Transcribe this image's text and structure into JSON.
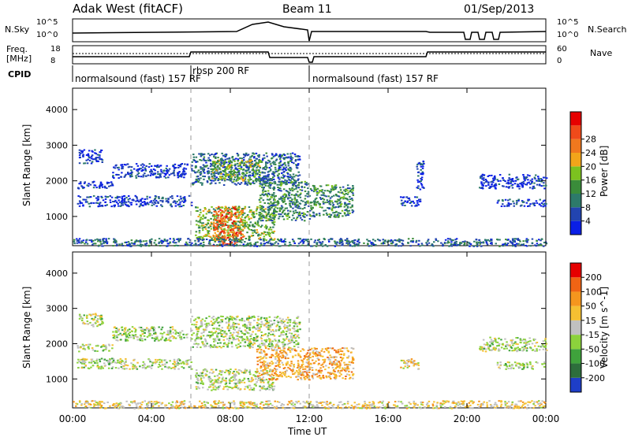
{
  "header": {
    "station": "Adak West (fitACF)",
    "beam": "Beam 11",
    "date": "01/Sep/2013"
  },
  "top_panels": {
    "nsky_label": "N.Sky",
    "nsky_ticks": [
      "10^5",
      "10^0"
    ],
    "nsearch_label": "N.Search",
    "nsearch_ticks": [
      "10^5",
      "10^0"
    ],
    "freq_label_line1": "Freq.",
    "freq_label_line2": "[MHz]",
    "freq_ticks": [
      "18",
      "8"
    ],
    "nave_label": "Nave",
    "nave_ticks": [
      "60",
      "0"
    ],
    "cpid_label": "CPID",
    "cpid_segments": [
      {
        "label": "normalsound (fast) 157 RF",
        "start_hour": 0.0
      },
      {
        "label": "rbsp 200 RF",
        "start_hour": 6.0
      },
      {
        "label": "normalsound (fast) 157 RF",
        "start_hour": 12.0
      }
    ]
  },
  "x_axis": {
    "label": "Time UT",
    "ticks": [
      "00:00",
      "04:00",
      "08:00",
      "12:00",
      "16:00",
      "20:00",
      "00:00"
    ],
    "range_hours": [
      0,
      24
    ]
  },
  "chart_data": [
    {
      "type": "heatmap",
      "quantity": "Power",
      "ylabel": "Slant Range [km]",
      "yticks": [
        1000,
        2000,
        3000,
        4000
      ],
      "ylim": [
        180,
        4600
      ],
      "xlim_hours": [
        0,
        24
      ],
      "colorbar_label": "Power [dB]",
      "colorbar_ticks": [
        "4",
        "8",
        "12",
        "16",
        "20",
        "24",
        "28"
      ],
      "colorbar_colors": [
        "#0a1fe6",
        "#2244b0",
        "#2d7a6a",
        "#3a8c3a",
        "#7cc21f",
        "#f2a51a",
        "#f0781e",
        "#f04a1a",
        "#e60000"
      ],
      "regions": [
        {
          "t0": 2.0,
          "t1": 5.8,
          "r0": 2100,
          "r1": 2500,
          "level": 1
        },
        {
          "t0": 0.2,
          "t1": 2.0,
          "r0": 1800,
          "r1": 2000,
          "level": 1
        },
        {
          "t0": 0.3,
          "t1": 1.5,
          "r0": 2500,
          "r1": 2900,
          "level": 1
        },
        {
          "t0": 6.0,
          "t1": 11.5,
          "r0": 1900,
          "r1": 2800,
          "level": 2
        },
        {
          "t0": 7.0,
          "t1": 9.5,
          "r0": 2000,
          "r1": 2600,
          "level": 4
        },
        {
          "t0": 0.2,
          "t1": 6.0,
          "r0": 1300,
          "r1": 1600,
          "level": 1
        },
        {
          "t0": 6.2,
          "t1": 10.2,
          "r0": 350,
          "r1": 1300,
          "level": 4
        },
        {
          "t0": 7.1,
          "t1": 8.6,
          "r0": 200,
          "r1": 1300,
          "level": 7
        },
        {
          "t0": 9.4,
          "t1": 12.0,
          "r0": 900,
          "r1": 2000,
          "level": 3
        },
        {
          "t0": 12.0,
          "t1": 14.2,
          "r0": 1000,
          "r1": 1900,
          "level": 3
        },
        {
          "t0": 16.6,
          "t1": 17.6,
          "r0": 1300,
          "r1": 1600,
          "level": 1
        },
        {
          "t0": 17.4,
          "t1": 17.8,
          "r0": 1700,
          "r1": 2600,
          "level": 1
        },
        {
          "t0": 20.6,
          "t1": 24.0,
          "r0": 1800,
          "r1": 2200,
          "level": 1
        },
        {
          "t0": 21.5,
          "t1": 24.0,
          "r0": 1300,
          "r1": 1500,
          "level": 1
        },
        {
          "t0": 0.0,
          "t1": 24.0,
          "r0": 180,
          "r1": 400,
          "level": 2
        }
      ]
    },
    {
      "type": "heatmap",
      "quantity": "Velocity",
      "ylabel": "Slant Range [km]",
      "yticks": [
        1000,
        2000,
        3000,
        4000
      ],
      "ylim": [
        180,
        4600
      ],
      "xlim_hours": [
        0,
        24
      ],
      "colorbar_label": "Velocity [m s^-1]",
      "colorbar_ticks": [
        "200",
        "100",
        "50",
        "15",
        "-15",
        "-50",
        "-100",
        "-200"
      ],
      "colorbar_colors": [
        "#1e3ec8",
        "#2d6e3c",
        "#3fa23c",
        "#8cd23c",
        "#c0c0c0",
        "#f5c032",
        "#f5961e",
        "#f06414",
        "#e60000"
      ],
      "regions": [
        {
          "t0": 2.0,
          "t1": 5.8,
          "r0": 2100,
          "r1": 2500,
          "level": 4
        },
        {
          "t0": 0.2,
          "t1": 2.0,
          "r0": 1800,
          "r1": 2000,
          "level": 4
        },
        {
          "t0": 0.3,
          "t1": 1.5,
          "r0": 2500,
          "r1": 2900,
          "level": 4
        },
        {
          "t0": 6.0,
          "t1": 11.5,
          "r0": 1900,
          "r1": 2800,
          "level": 4
        },
        {
          "t0": 0.2,
          "t1": 6.0,
          "r0": 1300,
          "r1": 1600,
          "level": 4
        },
        {
          "t0": 6.2,
          "t1": 10.2,
          "r0": 700,
          "r1": 1300,
          "level": 4
        },
        {
          "t0": 9.3,
          "t1": 12.0,
          "r0": 1000,
          "r1": 1900,
          "level": 6
        },
        {
          "t0": 12.0,
          "t1": 14.2,
          "r0": 1000,
          "r1": 1900,
          "level": 6
        },
        {
          "t0": 16.6,
          "t1": 17.6,
          "r0": 1300,
          "r1": 1600,
          "level": 5
        },
        {
          "t0": 20.6,
          "t1": 24.0,
          "r0": 1800,
          "r1": 2200,
          "level": 4
        },
        {
          "t0": 21.5,
          "t1": 24.0,
          "r0": 1300,
          "r1": 1500,
          "level": 4
        },
        {
          "t0": 0.0,
          "t1": 24.0,
          "r0": 180,
          "r1": 400,
          "level": 5
        }
      ]
    }
  ]
}
